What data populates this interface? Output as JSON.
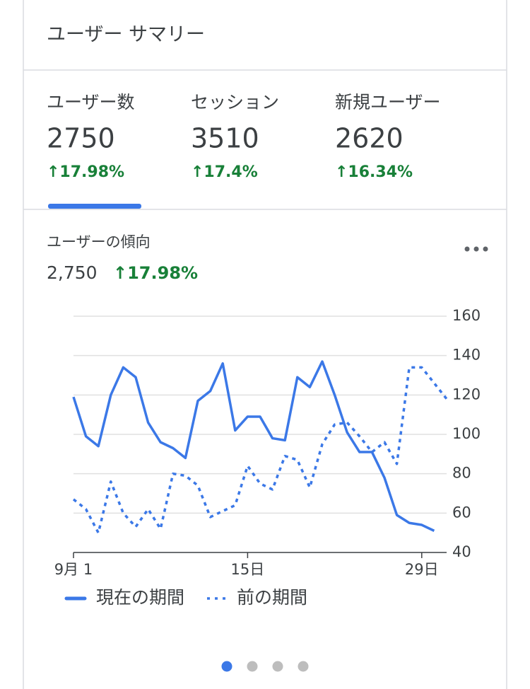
{
  "header": {
    "title": "ユーザー サマリー"
  },
  "metrics": [
    {
      "label": "ユーザー数",
      "value": 2750,
      "change": "↑17.98%"
    },
    {
      "label": "セッション",
      "value": 3510,
      "change": "↑17.4%"
    },
    {
      "label": "新規ユーザー",
      "value": 2620,
      "change": "↑16.34%"
    }
  ],
  "trend": {
    "title": "ユーザーの傾向",
    "value": "2,750",
    "change": "↑17.98%"
  },
  "chart_data": {
    "type": "line",
    "x": [
      1,
      2,
      3,
      4,
      5,
      6,
      7,
      8,
      9,
      10,
      11,
      12,
      13,
      14,
      15,
      16,
      17,
      18,
      19,
      20,
      21,
      22,
      23,
      24,
      25,
      26,
      27,
      28,
      29,
      30,
      31
    ],
    "series": [
      {
        "name": "現在の期間",
        "color": "#3b78e7",
        "style": "solid",
        "values": [
          119,
          99,
          94,
          120,
          134,
          129,
          106,
          96,
          93,
          88,
          117,
          122,
          136,
          102,
          109,
          109,
          98,
          97,
          129,
          124,
          137,
          120,
          101,
          91,
          91,
          78,
          59,
          55,
          54,
          51,
          null
        ]
      },
      {
        "name": "前の期間",
        "color": "#3b78e7",
        "style": "dotted",
        "values": [
          67,
          62,
          50,
          76,
          60,
          53,
          62,
          52,
          80,
          79,
          74,
          58,
          61,
          64,
          84,
          75,
          72,
          89,
          87,
          73,
          95,
          105,
          106,
          99,
          91,
          96,
          85,
          134,
          134,
          126,
          118
        ]
      }
    ],
    "xlim": [
      1,
      31
    ],
    "xticks": [
      {
        "value": 1,
        "label": "9月 1"
      },
      {
        "value": 15,
        "label": "15日"
      },
      {
        "value": 29,
        "label": "29日"
      }
    ],
    "ylim": [
      40,
      160
    ],
    "yticks": [
      40,
      60,
      80,
      100,
      120,
      140,
      160
    ],
    "grid": true,
    "legend": "bottom"
  }
}
